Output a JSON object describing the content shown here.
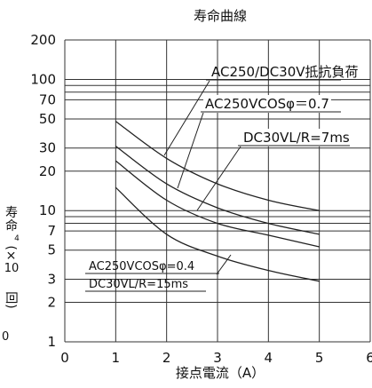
{
  "chart_data": {
    "type": "line",
    "title": "寿命曲線",
    "xlabel": "接点電流（A）",
    "ylabel_chars": [
      "寿",
      "命"
    ],
    "ylabel_unit": {
      "open": "(×",
      "exp": "4",
      "num": "10",
      "close": "回)"
    },
    "xlim": [
      0,
      6
    ],
    "ylim": [
      1,
      200
    ],
    "yscale": "log",
    "grid": true,
    "x_ticks": [
      0,
      1,
      2,
      3,
      4,
      5,
      6
    ],
    "y_ticks": [
      1,
      2,
      3,
      5,
      7,
      10,
      20,
      30,
      50,
      70,
      100,
      200
    ],
    "y_gridlines": [
      1,
      2,
      3,
      5,
      7,
      8,
      9,
      10,
      20,
      30,
      50,
      70,
      80,
      90,
      100,
      200
    ],
    "series": [
      {
        "x": [
          1,
          2,
          3,
          4,
          5
        ],
        "y": [
          48,
          25,
          16,
          12,
          10
        ]
      },
      {
        "x": [
          1,
          2,
          3,
          4,
          5
        ],
        "y": [
          31,
          16,
          10.5,
          8,
          6.6
        ]
      },
      {
        "x": [
          1,
          2,
          3,
          4,
          5
        ],
        "y": [
          24,
          12,
          8,
          6.5,
          5.3
        ]
      },
      {
        "x": [
          1,
          2,
          3,
          4,
          5
        ],
        "y": [
          15,
          6.6,
          4.5,
          3.5,
          2.9
        ]
      }
    ],
    "annotations": [
      {
        "text": "AC250/DC30V抵抗負荷"
      },
      {
        "text": "AC250VCOSφ＝0.7"
      },
      {
        "text": "DC30VL/R=7ms"
      },
      {
        "text": "AC250VCOSφ=0.4"
      },
      {
        "text": "DC30VL/R=15ms"
      }
    ],
    "corner_label": "0"
  }
}
